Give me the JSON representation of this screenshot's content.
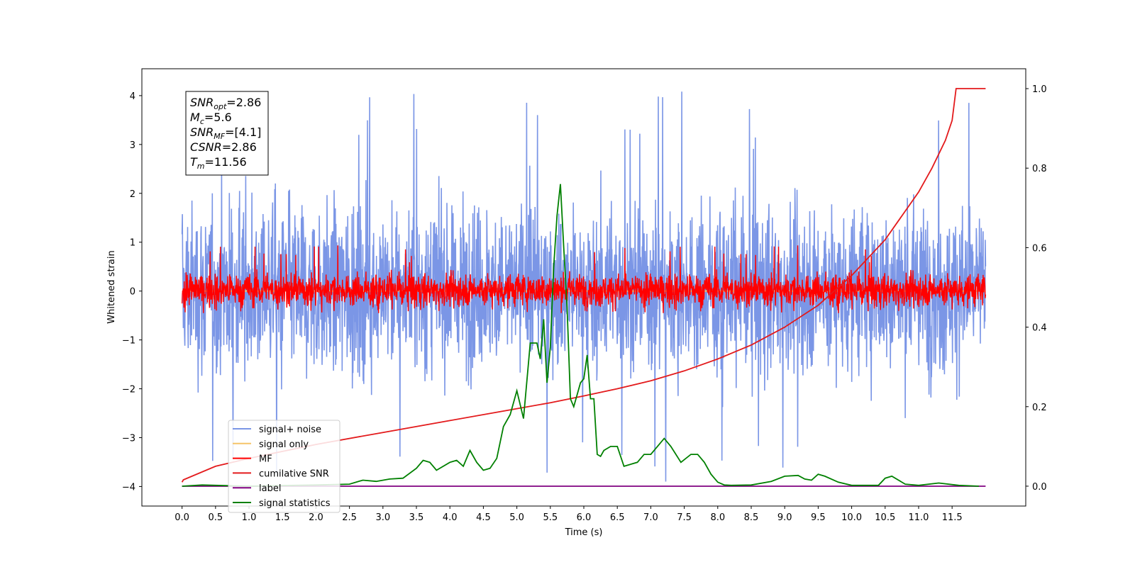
{
  "chart_data": {
    "type": "line",
    "title": "",
    "xlabel": "Time (s)",
    "ylabel": "Whitened strain",
    "xlim": [
      -0.6,
      12.6
    ],
    "ylim": [
      -4.4,
      4.55
    ],
    "y2lim": [
      -0.05,
      1.05
    ],
    "grid": false,
    "legend_position": "lower-left",
    "x_ticks": [
      0.0,
      0.5,
      1.0,
      1.5,
      2.0,
      2.5,
      3.0,
      3.5,
      4.0,
      4.5,
      5.0,
      5.5,
      6.0,
      6.5,
      7.0,
      7.5,
      8.0,
      8.5,
      9.0,
      9.5,
      10.0,
      10.5,
      11.0,
      11.5
    ],
    "x_tick_labels": [
      "0.0",
      "0.5",
      "1.0",
      "1.5",
      "2.0",
      "2.5",
      "3.0",
      "3.5",
      "4.0",
      "4.5",
      "5.0",
      "5.5",
      "6.0",
      "6.5",
      "7.0",
      "7.5",
      "8.0",
      "8.5",
      "9.0",
      "9.5",
      "10.0",
      "10.5",
      "11.0",
      "11.5"
    ],
    "y_ticks": [
      -4,
      -3,
      -2,
      -1,
      0,
      1,
      2,
      3,
      4
    ],
    "y_tick_labels": [
      "−4",
      "−3",
      "−2",
      "−1",
      "0",
      "1",
      "2",
      "3",
      "4"
    ],
    "y2_ticks": [
      0.0,
      0.2,
      0.4,
      0.6,
      0.8,
      1.0
    ],
    "y2_tick_labels": [
      "0.0",
      "0.2",
      "0.4",
      "0.6",
      "0.8",
      "1.0"
    ],
    "annotation": {
      "lines": [
        {
          "main": "SNR",
          "sub": "opt",
          "rest": "=2.86"
        },
        {
          "main": "M",
          "sub": "c",
          "rest": "=5.6"
        },
        {
          "main": "SNR",
          "sub": "MF",
          "rest": "=[4.1]"
        },
        {
          "main": "CSNR",
          "sub": "",
          "rest": "=2.86"
        },
        {
          "main": "T",
          "sub": "m",
          "rest": "=11.56"
        }
      ]
    },
    "series": [
      {
        "name": "signal+ noise",
        "axis": "left",
        "color": "#7b96e6",
        "kind": "noise",
        "x_range": [
          0.0,
          12.0
        ],
        "band": [
          -2.1,
          2.2
        ],
        "extremes": [
          -4.0,
          4.15
        ]
      },
      {
        "name": "signal only",
        "axis": "left",
        "color": "#f5c469",
        "kind": "constant",
        "x": [
          0.0,
          12.0
        ],
        "y": [
          0.0,
          0.0
        ]
      },
      {
        "name": "MF",
        "axis": "left",
        "color": "#ff0000",
        "kind": "noise",
        "x_range": [
          0.0,
          12.0
        ],
        "band": [
          -0.4,
          0.45
        ],
        "extremes": [
          -0.45,
          0.95
        ]
      },
      {
        "name": "cumilative SNR",
        "axis": "right",
        "color": "#e31a1c",
        "kind": "line",
        "x": [
          0.0,
          0.02,
          0.5,
          1.0,
          2.0,
          3.0,
          4.0,
          5.0,
          5.5,
          6.0,
          6.5,
          7.0,
          7.5,
          8.0,
          8.5,
          9.0,
          9.5,
          10.0,
          10.5,
          11.0,
          11.2,
          11.4,
          11.5,
          11.56,
          12.0
        ],
        "y": [
          0.01,
          0.016,
          0.05,
          0.07,
          0.105,
          0.135,
          0.165,
          0.195,
          0.21,
          0.227,
          0.245,
          0.265,
          0.29,
          0.32,
          0.355,
          0.4,
          0.455,
          0.53,
          0.62,
          0.74,
          0.8,
          0.87,
          0.92,
          1.0,
          1.0
        ]
      },
      {
        "name": "label",
        "axis": "right",
        "color": "#800080",
        "kind": "line",
        "x": [
          0.0,
          12.0
        ],
        "y": [
          0.0,
          0.0
        ]
      },
      {
        "name": "signal statistics",
        "axis": "right",
        "color": "#008000",
        "kind": "line",
        "x": [
          0.0,
          0.3,
          1.0,
          2.0,
          2.5,
          2.7,
          2.9,
          3.1,
          3.3,
          3.5,
          3.6,
          3.7,
          3.8,
          4.0,
          4.1,
          4.2,
          4.3,
          4.4,
          4.5,
          4.6,
          4.7,
          4.8,
          4.9,
          5.0,
          5.1,
          5.2,
          5.3,
          5.35,
          5.4,
          5.45,
          5.5,
          5.55,
          5.6,
          5.65,
          5.7,
          5.75,
          5.8,
          5.85,
          5.9,
          5.95,
          6.0,
          6.05,
          6.1,
          6.15,
          6.2,
          6.25,
          6.3,
          6.4,
          6.5,
          6.6,
          6.8,
          6.9,
          7.0,
          7.1,
          7.2,
          7.3,
          7.45,
          7.6,
          7.7,
          7.8,
          7.9,
          8.0,
          8.1,
          8.2,
          8.5,
          8.8,
          9.0,
          9.2,
          9.3,
          9.4,
          9.5,
          9.6,
          9.8,
          10.0,
          10.4,
          10.5,
          10.6,
          10.8,
          11.0,
          11.3,
          11.6,
          11.9
        ],
        "y": [
          0.0,
          0.003,
          0.0,
          0.003,
          0.005,
          0.015,
          0.012,
          0.018,
          0.02,
          0.045,
          0.065,
          0.06,
          0.04,
          0.06,
          0.065,
          0.05,
          0.09,
          0.06,
          0.04,
          0.045,
          0.07,
          0.15,
          0.18,
          0.24,
          0.17,
          0.36,
          0.36,
          0.32,
          0.42,
          0.26,
          0.35,
          0.55,
          0.68,
          0.76,
          0.6,
          0.45,
          0.22,
          0.2,
          0.23,
          0.26,
          0.27,
          0.33,
          0.22,
          0.22,
          0.08,
          0.075,
          0.09,
          0.1,
          0.1,
          0.05,
          0.06,
          0.08,
          0.08,
          0.1,
          0.12,
          0.1,
          0.06,
          0.08,
          0.08,
          0.06,
          0.03,
          0.01,
          0.003,
          0.002,
          0.003,
          0.012,
          0.025,
          0.027,
          0.018,
          0.015,
          0.03,
          0.025,
          0.01,
          0.002,
          0.002,
          0.02,
          0.025,
          0.005,
          0.002,
          0.008,
          0.002,
          0.0
        ]
      }
    ]
  }
}
